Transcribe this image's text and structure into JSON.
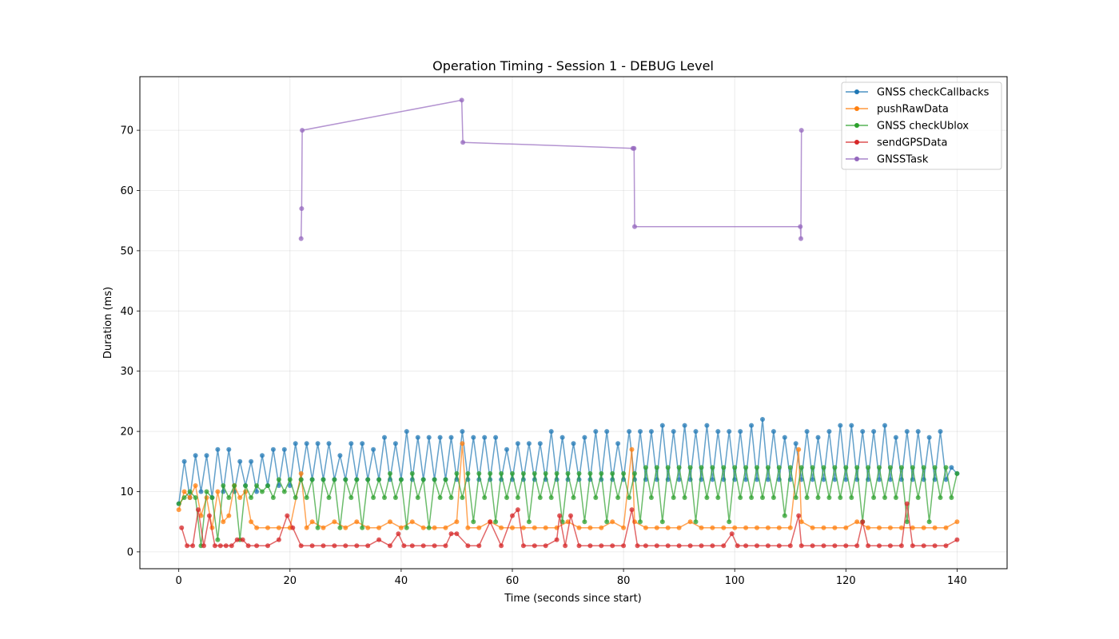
{
  "chart_data": {
    "type": "line",
    "title": "Operation Timing - Session 1 - DEBUG Level",
    "xlabel": "Time (seconds since start)",
    "ylabel": "Duration (ms)",
    "xlim": [
      -7,
      149
    ],
    "ylim": [
      -2.8,
      78.9
    ],
    "xticks": [
      0,
      20,
      40,
      60,
      80,
      100,
      120,
      140
    ],
    "yticks": [
      0,
      10,
      20,
      30,
      40,
      50,
      60,
      70
    ],
    "grid": true,
    "legend_position": "top-right",
    "series": [
      {
        "name": "GNSS checkCallbacks",
        "color": "#1f77b4",
        "x": [
          0,
          1,
          2,
          3,
          4,
          5,
          6,
          7,
          8,
          9,
          10,
          11,
          12,
          13,
          14,
          15,
          16,
          17,
          18,
          19,
          20,
          21,
          22,
          23,
          24,
          25,
          26,
          27,
          28,
          29,
          30,
          31,
          32,
          33,
          34,
          35,
          36,
          37,
          38,
          39,
          40,
          41,
          42,
          43,
          44,
          45,
          46,
          47,
          48,
          49,
          50,
          51,
          52,
          53,
          54,
          55,
          56,
          57,
          58,
          59,
          60,
          61,
          62,
          63,
          64,
          65,
          66,
          67,
          68,
          69,
          70,
          71,
          72,
          73,
          74,
          75,
          76,
          77,
          78,
          79,
          80,
          81,
          82,
          83,
          84,
          85,
          86,
          87,
          88,
          89,
          90,
          91,
          92,
          93,
          94,
          95,
          96,
          97,
          98,
          99,
          100,
          101,
          102,
          103,
          104,
          105,
          106,
          107,
          108,
          109,
          110,
          111,
          112,
          113,
          114,
          115,
          116,
          117,
          118,
          119,
          120,
          121,
          122,
          123,
          124,
          125,
          126,
          127,
          128,
          129,
          130,
          131,
          132,
          133,
          134,
          135,
          136,
          137,
          138,
          139,
          140
        ],
        "y": [
          8,
          15,
          9,
          16,
          10,
          16,
          9,
          17,
          10,
          17,
          10,
          15,
          11,
          15,
          10,
          16,
          11,
          17,
          11,
          17,
          11,
          18,
          12,
          18,
          12,
          18,
          12,
          18,
          12,
          16,
          12,
          18,
          12,
          18,
          12,
          17,
          12,
          19,
          12,
          18,
          12,
          20,
          12,
          19,
          12,
          19,
          12,
          19,
          12,
          19,
          12,
          20,
          12,
          19,
          12,
          19,
          12,
          19,
          12,
          17,
          12,
          18,
          12,
          18,
          12,
          18,
          12,
          20,
          12,
          19,
          12,
          18,
          12,
          19,
          12,
          20,
          12,
          20,
          12,
          18,
          12,
          20,
          12,
          20,
          12,
          20,
          12,
          21,
          12,
          20,
          12,
          21,
          12,
          20,
          12,
          21,
          12,
          20,
          12,
          20,
          12,
          20,
          12,
          21,
          12,
          22,
          12,
          20,
          12,
          19,
          12,
          18,
          12,
          20,
          12,
          19,
          12,
          20,
          12,
          21,
          12,
          21,
          12,
          20,
          12,
          20,
          12,
          21,
          12,
          19,
          12,
          20,
          12,
          20,
          12,
          19,
          12,
          20,
          12,
          14,
          13
        ]
      },
      {
        "name": "pushRawData",
        "color": "#ff7f0e",
        "x": [
          0,
          1,
          2,
          3,
          4,
          5,
          6,
          7,
          8,
          9,
          10,
          11,
          12,
          13,
          14,
          16,
          18,
          20,
          22,
          23,
          24,
          26,
          28,
          30,
          32,
          34,
          36,
          38,
          40,
          42,
          44,
          46,
          48,
          50,
          51,
          52,
          54,
          56,
          58,
          60,
          62,
          64,
          66,
          68,
          70,
          72,
          74,
          76,
          78,
          80,
          81.5,
          82,
          84,
          86,
          88,
          90,
          92,
          94,
          96,
          98,
          100,
          102,
          104,
          106,
          108,
          110,
          111.5,
          112,
          114,
          116,
          118,
          120,
          122,
          124,
          126,
          128,
          130,
          132,
          134,
          136,
          138,
          140
        ],
        "y": [
          7,
          10,
          9,
          11,
          6,
          9,
          4,
          10,
          5,
          6,
          11,
          9,
          10,
          5,
          4,
          4,
          4,
          4,
          13,
          4,
          5,
          4,
          5,
          4,
          5,
          4,
          4,
          5,
          4,
          5,
          4,
          4,
          4,
          5,
          18,
          4,
          4,
          5,
          4,
          4,
          4,
          4,
          4,
          4,
          5,
          4,
          4,
          4,
          5,
          4,
          17,
          5,
          4,
          4,
          4,
          4,
          5,
          4,
          4,
          4,
          4,
          4,
          4,
          4,
          4,
          4,
          17,
          5,
          4,
          4,
          4,
          4,
          5,
          4,
          4,
          4,
          4,
          4,
          4,
          4,
          4,
          5
        ]
      },
      {
        "name": "GNSS checkUblox",
        "color": "#2ca02c",
        "x": [
          0,
          1,
          2,
          3,
          4,
          5,
          6,
          7,
          8,
          9,
          10,
          11,
          12,
          13,
          14,
          15,
          16,
          17,
          18,
          19,
          20,
          21,
          22,
          23,
          24,
          25,
          26,
          27,
          28,
          29,
          30,
          31,
          32,
          33,
          34,
          35,
          36,
          37,
          38,
          39,
          40,
          41,
          42,
          43,
          44,
          45,
          46,
          47,
          48,
          49,
          50,
          51,
          52,
          53,
          54,
          55,
          56,
          57,
          58,
          59,
          60,
          61,
          62,
          63,
          64,
          65,
          66,
          67,
          68,
          69,
          70,
          71,
          72,
          73,
          74,
          75,
          76,
          77,
          78,
          79,
          80,
          81,
          82,
          83,
          84,
          85,
          86,
          87,
          88,
          89,
          90,
          91,
          92,
          93,
          94,
          95,
          96,
          97,
          98,
          99,
          100,
          101,
          102,
          103,
          104,
          105,
          106,
          107,
          108,
          109,
          110,
          111,
          112,
          113,
          114,
          115,
          116,
          117,
          118,
          119,
          120,
          121,
          122,
          123,
          124,
          125,
          126,
          127,
          128,
          129,
          130,
          131,
          132,
          133,
          134,
          135,
          136,
          137,
          138,
          139,
          140
        ],
        "y": [
          8,
          9,
          10,
          9,
          1,
          10,
          9,
          2,
          11,
          9,
          11,
          2,
          11,
          9,
          11,
          10,
          11,
          9,
          12,
          10,
          12,
          9,
          12,
          9,
          12,
          4,
          12,
          9,
          12,
          4,
          12,
          9,
          12,
          4,
          12,
          9,
          12,
          9,
          13,
          9,
          12,
          4,
          13,
          9,
          12,
          4,
          12,
          9,
          12,
          9,
          13,
          9,
          13,
          5,
          13,
          9,
          13,
          5,
          13,
          9,
          13,
          9,
          13,
          5,
          13,
          9,
          13,
          9,
          13,
          5,
          13,
          9,
          13,
          5,
          13,
          9,
          13,
          5,
          13,
          9,
          13,
          9,
          13,
          5,
          14,
          9,
          14,
          5,
          14,
          9,
          14,
          9,
          14,
          5,
          14,
          9,
          14,
          9,
          14,
          5,
          14,
          9,
          14,
          9,
          14,
          9,
          14,
          9,
          14,
          6,
          14,
          9,
          14,
          9,
          14,
          9,
          14,
          9,
          14,
          9,
          14,
          9,
          14,
          5,
          14,
          9,
          14,
          9,
          14,
          9,
          14,
          5,
          14,
          9,
          14,
          5,
          14,
          9,
          14,
          9,
          13
        ]
      },
      {
        "name": "sendGPSData",
        "color": "#d62728",
        "x": [
          0.5,
          1.5,
          2.5,
          3.5,
          4.5,
          5.5,
          6.5,
          7.5,
          8.5,
          9.5,
          10.5,
          11.5,
          12.5,
          14,
          16,
          18,
          19.5,
          20.5,
          22,
          24,
          26,
          28,
          30,
          32,
          34,
          36,
          38,
          39.5,
          40.5,
          42,
          44,
          46,
          48,
          49,
          50,
          52,
          54,
          56,
          58,
          60,
          61,
          62,
          64,
          66,
          68,
          68.5,
          69.5,
          70.5,
          72,
          74,
          76,
          78,
          80,
          81.5,
          82.5,
          84,
          86,
          88,
          90,
          92,
          94,
          96,
          98,
          99.5,
          100.5,
          102,
          104,
          106,
          108,
          110,
          111.5,
          112,
          114,
          116,
          118,
          120,
          122,
          123,
          124,
          126,
          128,
          130,
          131,
          132,
          134,
          136,
          138,
          140
        ],
        "y": [
          4,
          1,
          1,
          7,
          1,
          6,
          1,
          1,
          1,
          1,
          2,
          2,
          1,
          1,
          1,
          2,
          6,
          4,
          1,
          1,
          1,
          1,
          1,
          1,
          1,
          2,
          1,
          3,
          1,
          1,
          1,
          1,
          1,
          3,
          3,
          1,
          1,
          5,
          1,
          6,
          7,
          1,
          1,
          1,
          2,
          6,
          1,
          6,
          1,
          1,
          1,
          1,
          1,
          7,
          1,
          1,
          1,
          1,
          1,
          1,
          1,
          1,
          1,
          3,
          1,
          1,
          1,
          1,
          1,
          1,
          6,
          1,
          1,
          1,
          1,
          1,
          1,
          5,
          1,
          1,
          1,
          1,
          8,
          1,
          1,
          1,
          1,
          2
        ]
      },
      {
        "name": "GNSSTask",
        "color": "#9467bd",
        "x": [
          22.0,
          22.1,
          22.2,
          50.9,
          51.1,
          81.7,
          81.9,
          82.0,
          111.8,
          111.9,
          112.0
        ],
        "y": [
          52,
          57,
          70,
          75,
          68,
          67,
          67,
          54,
          54,
          52,
          70
        ]
      }
    ]
  }
}
